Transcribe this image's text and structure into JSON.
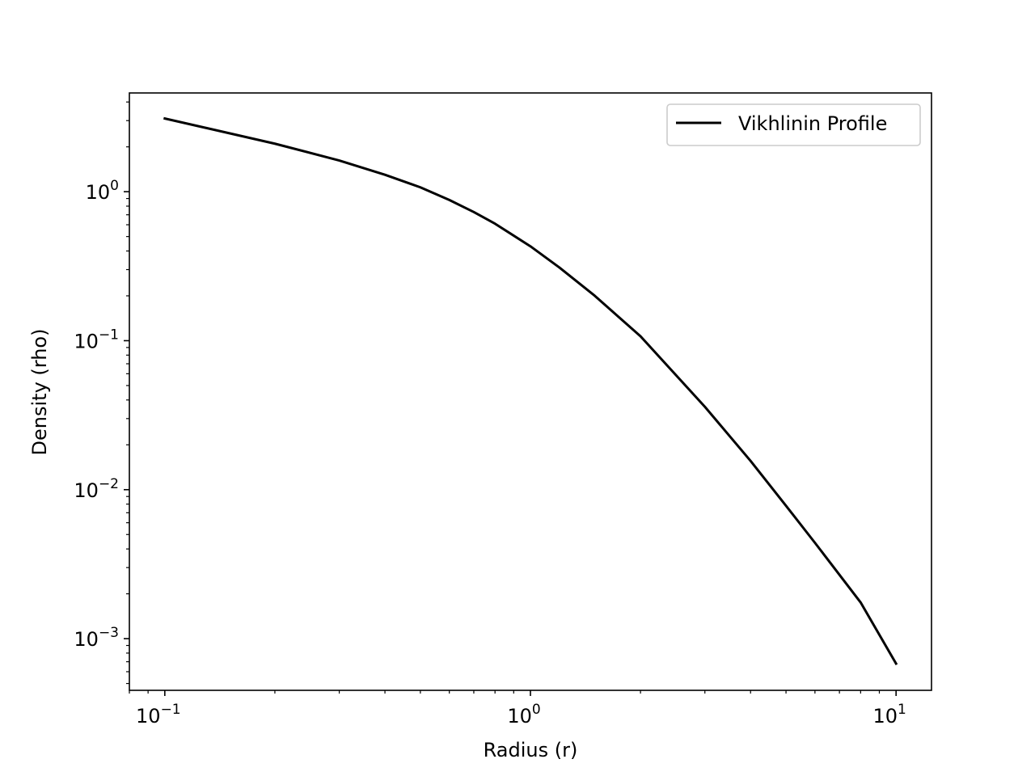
{
  "chart_data": {
    "type": "line",
    "xscale": "log",
    "yscale": "log",
    "xlabel": "Radius (r)",
    "ylabel": "Density (rho)",
    "xlim": [
      0.08,
      12.5
    ],
    "ylim": [
      0.00045,
      4.6
    ],
    "xticks": [
      {
        "value": 0.1,
        "base": "10",
        "exp": "−1"
      },
      {
        "value": 1,
        "base": "10",
        "exp": "0"
      },
      {
        "value": 10,
        "base": "10",
        "exp": "1"
      }
    ],
    "yticks": [
      {
        "value": 0.001,
        "base": "10",
        "exp": "−3"
      },
      {
        "value": 0.01,
        "base": "10",
        "exp": "−2"
      },
      {
        "value": 0.1,
        "base": "10",
        "exp": "−1"
      },
      {
        "value": 1,
        "base": "10",
        "exp": "0"
      }
    ],
    "grid": false,
    "legend_position": "upper right",
    "series": [
      {
        "name": "Vikhlinin Profile",
        "color": "#000000",
        "x": [
          0.1,
          0.2,
          0.3,
          0.4,
          0.5,
          0.6,
          0.7,
          0.8,
          1.0,
          1.2,
          1.5,
          2.0,
          3.0,
          4.0,
          5.0,
          6.0,
          8.0,
          10.0
        ],
        "y": [
          3.1,
          2.1,
          1.62,
          1.3,
          1.07,
          0.88,
          0.73,
          0.61,
          0.43,
          0.31,
          0.2,
          0.107,
          0.036,
          0.0156,
          0.0078,
          0.0044,
          0.00175,
          0.00068
        ]
      }
    ]
  }
}
